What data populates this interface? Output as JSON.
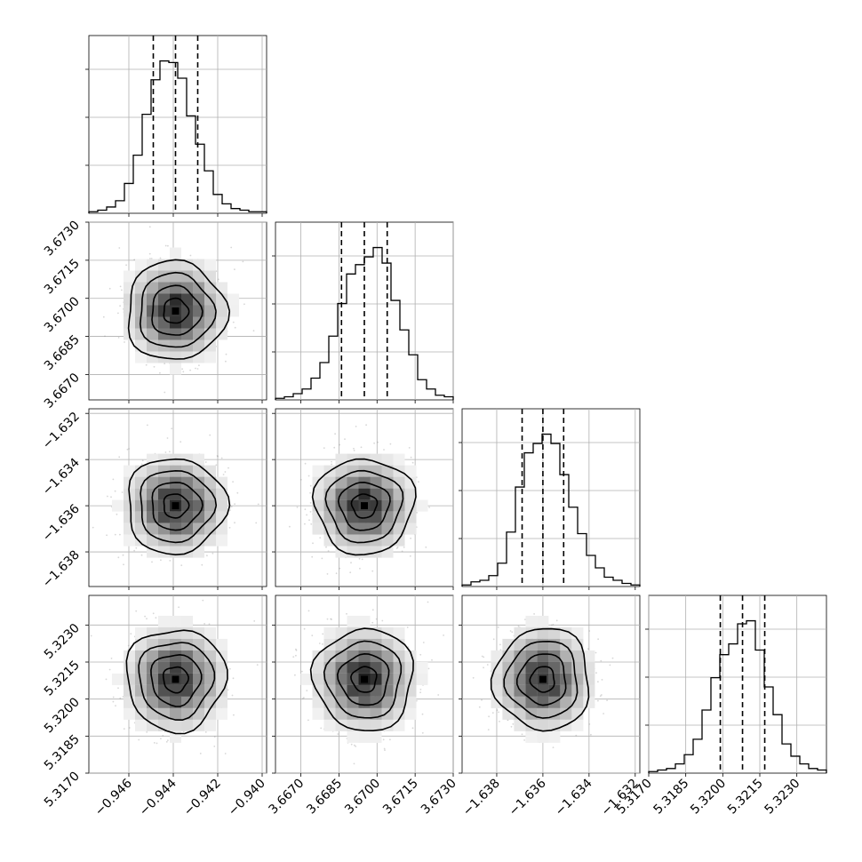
{
  "chart_data": {
    "type": "scatter",
    "plot_kind": "corner",
    "grid": true,
    "colors": {
      "points": "#8c8c8c",
      "density": "#000000",
      "lines": "#000000",
      "grid": "#b0b0b0"
    },
    "parameters": [
      {
        "id": "p0",
        "range": [
          -0.9478,
          -0.9398
        ],
        "center": -0.9439,
        "sigma": 0.00097,
        "quantiles": [
          -0.9449,
          -0.9439,
          -0.9429
        ],
        "tick_values": [
          -0.946,
          -0.944,
          -0.942,
          -0.94
        ],
        "tick_labels": [
          "−0.946",
          "−0.944",
          "−0.942",
          "−0.940"
        ],
        "hist_counts": [
          1,
          2,
          4,
          8,
          19,
          37,
          63,
          85,
          97,
          96,
          86,
          62,
          44,
          27,
          12,
          6,
          3,
          2,
          1,
          1
        ]
      },
      {
        "id": "p1",
        "range": [
          3.666,
          3.673
        ],
        "center": 3.6695,
        "sigma": 0.00085,
        "quantiles": [
          3.6686,
          3.6695,
          3.6704
        ],
        "tick_values": [
          3.667,
          3.6685,
          3.67,
          3.6715,
          3.673
        ],
        "tick_labels": [
          "3.6670",
          "3.6685",
          "3.6700",
          "3.6715",
          "3.6730"
        ],
        "hist_counts": [
          1,
          2,
          4,
          7,
          14,
          24,
          41,
          62,
          81,
          87,
          92,
          98,
          88,
          64,
          45,
          29,
          13,
          7,
          3,
          2
        ]
      },
      {
        "id": "p2",
        "range": [
          -1.6395,
          -1.6318
        ],
        "center": -1.636,
        "sigma": 0.0009,
        "quantiles": [
          -1.6369,
          -1.636,
          -1.6351
        ],
        "tick_values": [
          -1.638,
          -1.636,
          -1.634,
          -1.632
        ],
        "tick_labels": [
          "−1.638",
          "−1.636",
          "−1.634",
          "−1.632"
        ],
        "hist_counts": [
          1,
          3,
          4,
          7,
          15,
          35,
          64,
          86,
          92,
          98,
          92,
          72,
          51,
          34,
          20,
          12,
          6,
          4,
          2,
          1
        ]
      },
      {
        "id": "p3",
        "range": [
          5.317,
          5.3242
        ],
        "center": 5.3208,
        "sigma": 0.0009,
        "quantiles": [
          5.3199,
          5.3208,
          5.3217
        ],
        "tick_values": [
          5.317,
          5.3185,
          5.32,
          5.3215,
          5.323
        ],
        "tick_labels": [
          "5.3170",
          "5.3185",
          "5.3200",
          "5.3215",
          "5.3230"
        ],
        "hist_counts": [
          1,
          2,
          3,
          6,
          12,
          22,
          41,
          62,
          77,
          84,
          97,
          99,
          80,
          56,
          38,
          19,
          11,
          6,
          3,
          2
        ]
      }
    ],
    "contour_levels_sigma": [
      0.5,
      1.0,
      1.5,
      2.0
    ],
    "xlabels": [
      "",
      "",
      "",
      ""
    ],
    "ylabels": [
      "",
      "",
      "",
      ""
    ],
    "title": ""
  }
}
